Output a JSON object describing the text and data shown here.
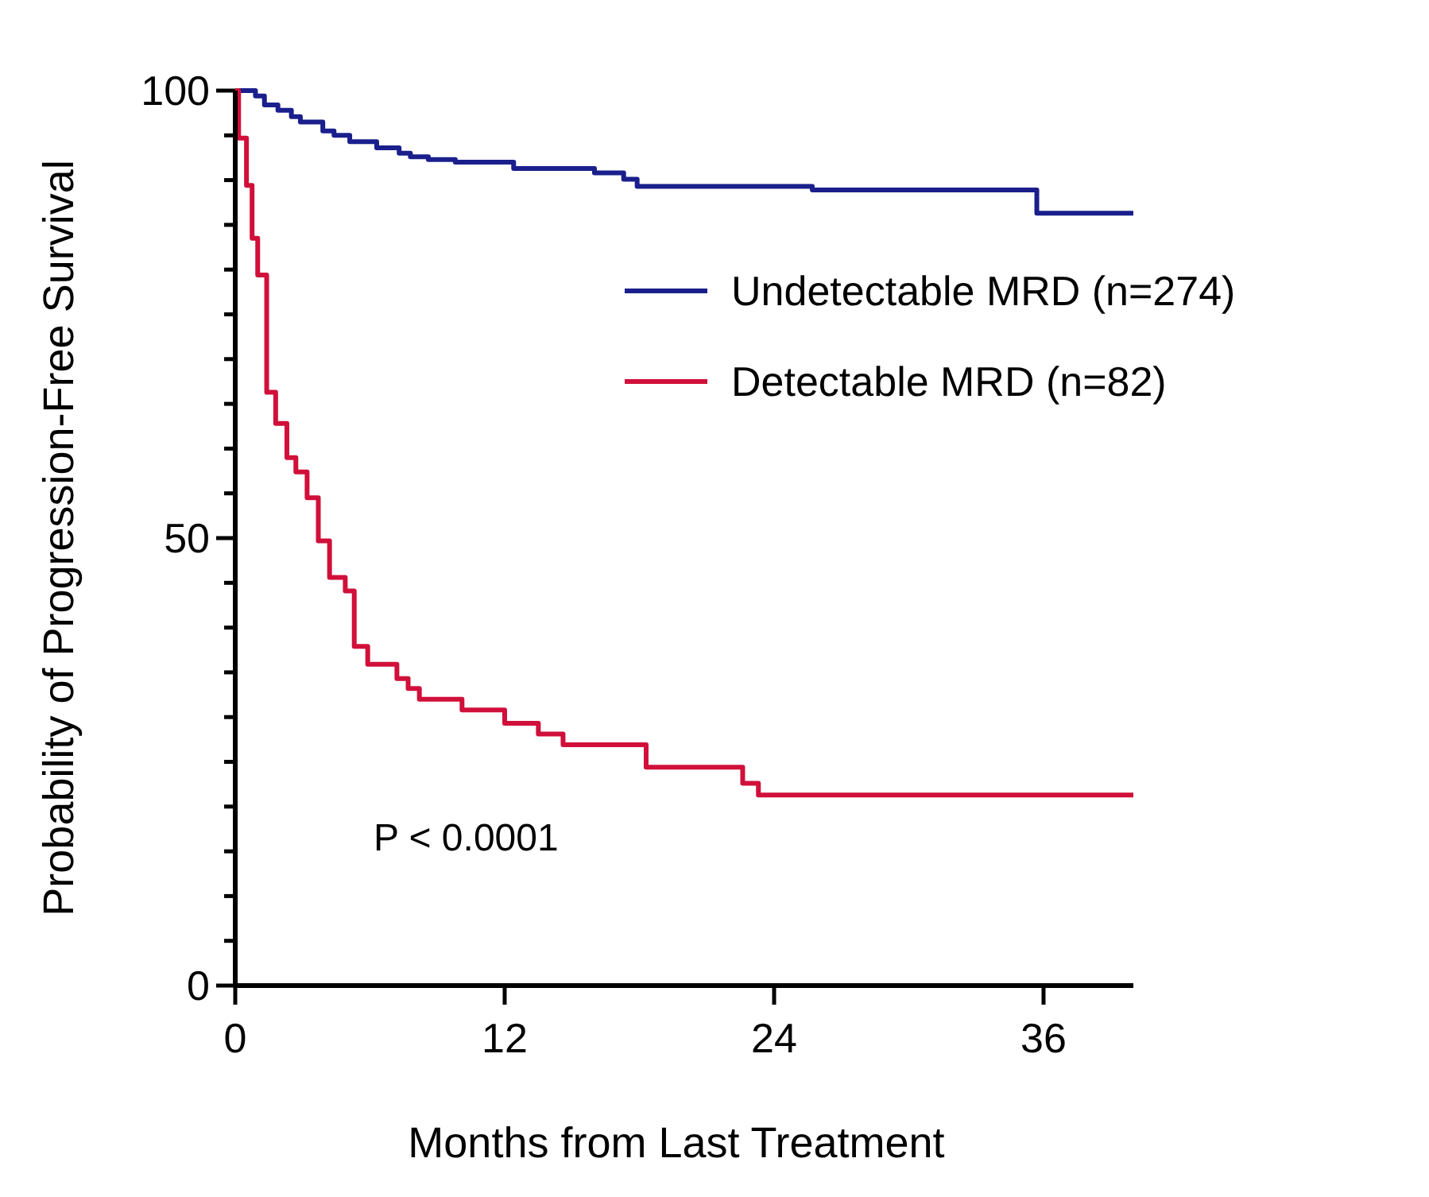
{
  "chart_data": {
    "type": "step",
    "xlabel": "Months from Last Treatment",
    "ylabel": "Probability of Progression-Free Survival",
    "xlim": [
      0,
      40
    ],
    "xticks": [
      0,
      12,
      24,
      36
    ],
    "ylim": [
      0,
      100
    ],
    "yticks": [
      0,
      {
        "value": 5,
        "label": null
      },
      {
        "value": 10,
        "label": null
      },
      {
        "value": 15,
        "label": null
      },
      {
        "value": 20,
        "label": null
      },
      {
        "value": 25,
        "label": null
      },
      {
        "value": 30,
        "label": null
      },
      {
        "value": 35,
        "label": null
      },
      {
        "value": 40,
        "label": null
      },
      {
        "value": 45,
        "label": null
      },
      50,
      {
        "value": 55,
        "label": null
      },
      {
        "value": 60,
        "label": null
      },
      {
        "value": 65,
        "label": null
      },
      {
        "value": 70,
        "label": null
      },
      {
        "value": 75,
        "label": null
      },
      {
        "value": 80,
        "label": null
      },
      {
        "value": 85,
        "label": null
      },
      {
        "value": 90,
        "label": null
      },
      {
        "value": 95,
        "label": null
      },
      100
    ],
    "legend": "top right",
    "grid": false,
    "series": [
      {
        "name": "Undetectable MRD (n=274)",
        "color": "#1a1f8c",
        "x": [
          0,
          0.9,
          1.3,
          1.9,
          2.5,
          2.9,
          3.9,
          4.4,
          5.1,
          6.3,
          7.3,
          7.8,
          8.6,
          9.8,
          12.4,
          16,
          17.3,
          17.9,
          25.7,
          35.7,
          40
        ],
        "values": [
          100,
          99.4,
          98.4,
          97.8,
          97.1,
          96.5,
          95.5,
          95,
          94.3,
          93.6,
          93,
          92.6,
          92.3,
          92,
          91.3,
          90.8,
          90.1,
          89.3,
          88.9,
          86.3,
          86.3
        ]
      },
      {
        "name": "Detectable MRD (n=82)",
        "color": "#d0103a",
        "x": [
          0,
          0.15,
          0.5,
          0.75,
          1,
          1.4,
          1.8,
          2.3,
          2.7,
          3.2,
          3.7,
          4.2,
          4.9,
          5.3,
          5.9,
          7.2,
          7.7,
          8.2,
          10.1,
          12,
          13.5,
          14.6,
          18.3,
          22.6,
          23.3,
          40
        ],
        "values": [
          100,
          94.7,
          89.4,
          83.5,
          79.4,
          66.3,
          62.8,
          59,
          57.4,
          54.5,
          49.7,
          45.6,
          44.1,
          37.9,
          35.9,
          34.3,
          33.2,
          32,
          30.8,
          29.3,
          28.1,
          26.9,
          24.4,
          22.6,
          21.3,
          21.3
        ]
      }
    ],
    "annotations": [
      "P < 0.0001"
    ]
  }
}
